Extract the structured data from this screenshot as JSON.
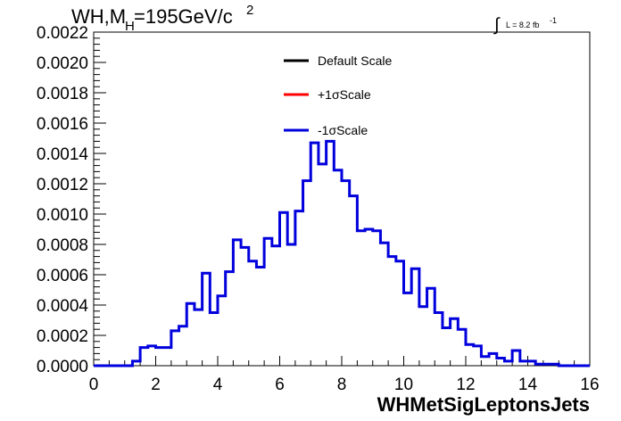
{
  "chart_data": {
    "type": "line",
    "style": "step-histogram",
    "title_main": "WH,M",
    "title_sub": "H",
    "title_value": "=195GeV/c",
    "title_sup": "2",
    "luminosity": {
      "integral_symbol": "∫",
      "text": "L = 8.2 fb",
      "sup": "-1"
    },
    "xlabel": "WHMetSigLeptonsJets",
    "ylabel": "",
    "xlim": [
      0,
      16
    ],
    "ylim": [
      0,
      0.0022
    ],
    "x_ticks": [
      "0",
      "2",
      "4",
      "6",
      "8",
      "10",
      "12",
      "14",
      "16"
    ],
    "y_ticks": [
      "0.0000",
      "0.0002",
      "0.0004",
      "0.0006",
      "0.0008",
      "0.0010",
      "0.0012",
      "0.0014",
      "0.0016",
      "0.0018",
      "0.0020",
      "0.0022"
    ],
    "bin_edges_start": 0,
    "bin_width": 0.25,
    "legend": [
      {
        "label": "Default Scale",
        "color": "#000000"
      },
      {
        "label": "+1σScale",
        "color": "#ff0000"
      },
      {
        "label": "-1σScale",
        "color": "#0000dd"
      }
    ],
    "series": [
      {
        "name": "-1σScale",
        "color": "#0000dd",
        "values": [
          0,
          0,
          0,
          0,
          0,
          3e-05,
          0.00012,
          0.00013,
          0.00012,
          0.00012,
          0.00023,
          0.00026,
          0.00041,
          0.00037,
          0.00061,
          0.00035,
          0.00046,
          0.00062,
          0.00083,
          0.00078,
          0.00069,
          0.00065,
          0.00084,
          0.00079,
          0.00101,
          0.0008,
          0.00102,
          0.00122,
          0.00147,
          0.00133,
          0.00148,
          0.00129,
          0.00122,
          0.00112,
          0.00089,
          0.0009,
          0.00089,
          0.00081,
          0.00072,
          0.00069,
          0.00048,
          0.00064,
          0.00039,
          0.00051,
          0.00035,
          0.00025,
          0.00031,
          0.00024,
          0.00014,
          0.00013,
          6e-05,
          8e-05,
          5e-05,
          3e-05,
          0.0001,
          3e-05,
          3e-05,
          1e-05,
          1e-05,
          1e-05,
          0,
          0,
          0,
          0
        ]
      }
    ]
  }
}
